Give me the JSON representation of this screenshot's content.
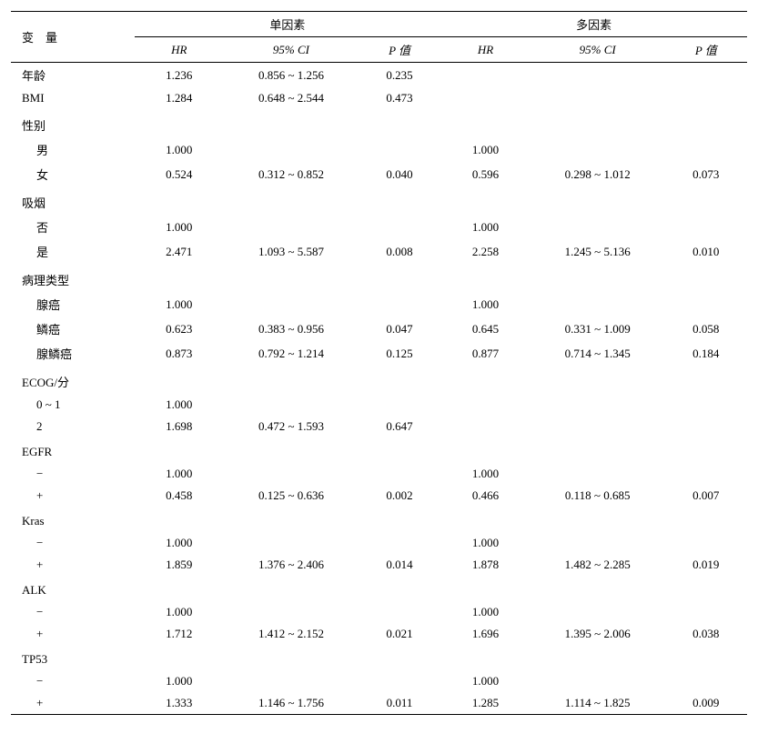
{
  "headers": {
    "variable": "变　量",
    "uni": "单因素",
    "multi": "多因素",
    "hr": "HR",
    "ci": "95% CI",
    "p": "P 值"
  },
  "rows": [
    {
      "type": "data",
      "label": "年龄",
      "indent": false,
      "u_hr": "1.236",
      "u_ci": "0.856 ~ 1.256",
      "u_p": "0.235",
      "m_hr": "",
      "m_ci": "",
      "m_p": ""
    },
    {
      "type": "data",
      "label": "BMI",
      "indent": false,
      "u_hr": "1.284",
      "u_ci": "0.648 ~ 2.544",
      "u_p": "0.473",
      "m_hr": "",
      "m_ci": "",
      "m_p": ""
    },
    {
      "type": "section",
      "label": "性别"
    },
    {
      "type": "data",
      "label": "男",
      "indent": true,
      "u_hr": "1.000",
      "u_ci": "",
      "u_p": "",
      "m_hr": "1.000",
      "m_ci": "",
      "m_p": ""
    },
    {
      "type": "data",
      "label": "女",
      "indent": true,
      "u_hr": "0.524",
      "u_ci": "0.312 ~ 0.852",
      "u_p": "0.040",
      "m_hr": "0.596",
      "m_ci": "0.298 ~ 1.012",
      "m_p": "0.073"
    },
    {
      "type": "section",
      "label": "吸烟"
    },
    {
      "type": "data",
      "label": "否",
      "indent": true,
      "u_hr": "1.000",
      "u_ci": "",
      "u_p": "",
      "m_hr": "1.000",
      "m_ci": "",
      "m_p": ""
    },
    {
      "type": "data",
      "label": "是",
      "indent": true,
      "u_hr": "2.471",
      "u_ci": "1.093 ~ 5.587",
      "u_p": "0.008",
      "m_hr": "2.258",
      "m_ci": "1.245 ~ 5.136",
      "m_p": "0.010"
    },
    {
      "type": "section",
      "label": "病理类型"
    },
    {
      "type": "data",
      "label": "腺癌",
      "indent": true,
      "u_hr": "1.000",
      "u_ci": "",
      "u_p": "",
      "m_hr": "1.000",
      "m_ci": "",
      "m_p": ""
    },
    {
      "type": "data",
      "label": "鳞癌",
      "indent": true,
      "u_hr": "0.623",
      "u_ci": "0.383 ~ 0.956",
      "u_p": "0.047",
      "m_hr": "0.645",
      "m_ci": "0.331 ~ 1.009",
      "m_p": "0.058"
    },
    {
      "type": "data",
      "label": "腺鳞癌",
      "indent": true,
      "u_hr": "0.873",
      "u_ci": "0.792 ~ 1.214",
      "u_p": "0.125",
      "m_hr": "0.877",
      "m_ci": "0.714 ~ 1.345",
      "m_p": "0.184"
    },
    {
      "type": "section",
      "label": "ECOG/分"
    },
    {
      "type": "data",
      "label": "0 ~ 1",
      "indent": true,
      "u_hr": "1.000",
      "u_ci": "",
      "u_p": "",
      "m_hr": "",
      "m_ci": "",
      "m_p": ""
    },
    {
      "type": "data",
      "label": "2",
      "indent": true,
      "u_hr": "1.698",
      "u_ci": "0.472 ~ 1.593",
      "u_p": "0.647",
      "m_hr": "",
      "m_ci": "",
      "m_p": ""
    },
    {
      "type": "section",
      "label": "EGFR"
    },
    {
      "type": "data",
      "label": "−",
      "indent": true,
      "u_hr": "1.000",
      "u_ci": "",
      "u_p": "",
      "m_hr": "1.000",
      "m_ci": "",
      "m_p": ""
    },
    {
      "type": "data",
      "label": "+",
      "indent": true,
      "u_hr": "0.458",
      "u_ci": "0.125 ~ 0.636",
      "u_p": "0.002",
      "m_hr": "0.466",
      "m_ci": "0.118 ~ 0.685",
      "m_p": "0.007"
    },
    {
      "type": "section",
      "label": "Kras"
    },
    {
      "type": "data",
      "label": "−",
      "indent": true,
      "u_hr": "1.000",
      "u_ci": "",
      "u_p": "",
      "m_hr": "1.000",
      "m_ci": "",
      "m_p": ""
    },
    {
      "type": "data",
      "label": "+",
      "indent": true,
      "u_hr": "1.859",
      "u_ci": "1.376 ~ 2.406",
      "u_p": "0.014",
      "m_hr": "1.878",
      "m_ci": "1.482 ~ 2.285",
      "m_p": "0.019"
    },
    {
      "type": "section",
      "label": "ALK"
    },
    {
      "type": "data",
      "label": "−",
      "indent": true,
      "u_hr": "1.000",
      "u_ci": "",
      "u_p": "",
      "m_hr": "1.000",
      "m_ci": "",
      "m_p": ""
    },
    {
      "type": "data",
      "label": "+",
      "indent": true,
      "u_hr": "1.712",
      "u_ci": "1.412 ~ 2.152",
      "u_p": "0.021",
      "m_hr": "1.696",
      "m_ci": "1.395 ~ 2.006",
      "m_p": "0.038"
    },
    {
      "type": "section",
      "label": "TP53"
    },
    {
      "type": "data",
      "label": "−",
      "indent": true,
      "u_hr": "1.000",
      "u_ci": "",
      "u_p": "",
      "m_hr": "1.000",
      "m_ci": "",
      "m_p": ""
    },
    {
      "type": "data",
      "label": "+",
      "indent": true,
      "u_hr": "1.333",
      "u_ci": "1.146 ~ 1.756",
      "u_p": "0.011",
      "m_hr": "1.285",
      "m_ci": "1.114 ~ 1.825",
      "m_p": "0.009"
    }
  ]
}
